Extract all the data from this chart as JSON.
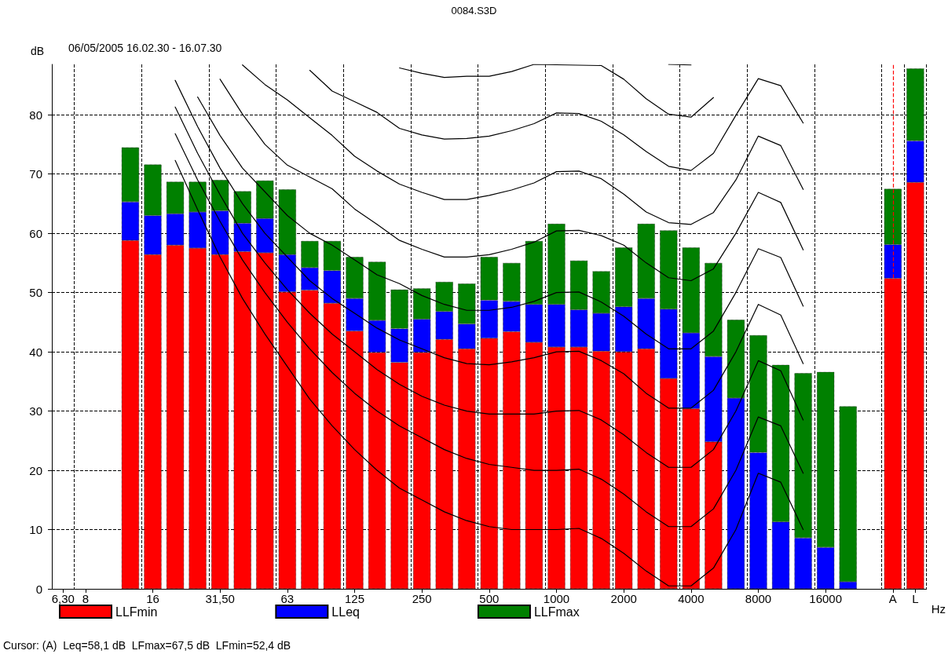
{
  "chart_data": {
    "type": "bar",
    "title": "0084.S3D",
    "subtitle": "06/05/2005 16.02.30 - 16.07.30",
    "ylabel": "dB",
    "xlabel": "Hz",
    "annotations": [
      "Cursor: (A)  Leq=58,1 dB  LFmax=67,5 dB  LFmin=52,4 dB"
    ],
    "categories": [
      "6,30",
      "8",
      null,
      null,
      "16",
      null,
      null,
      "31,50",
      null,
      null,
      "63",
      null,
      null,
      "125",
      null,
      null,
      "250",
      null,
      null,
      "500",
      null,
      null,
      "1000",
      null,
      null,
      "2000",
      null,
      null,
      "4000",
      null,
      null,
      "8000",
      null,
      null,
      "16000",
      null,
      null,
      "A",
      "L"
    ],
    "stacked": true,
    "ylim": [
      0,
      88.5
    ],
    "yticks": [
      0,
      10,
      20,
      30,
      40,
      50,
      60,
      70,
      80
    ],
    "grid": true,
    "legend": "bottom",
    "marker": "none",
    "ref_lines": [
      {
        "axis": "x",
        "value": "A",
        "color": "#ff0000",
        "line_style": "dashed"
      }
    ],
    "series": [
      {
        "name": "LLFmin",
        "color": "#ff0000",
        "values": [
          null,
          null,
          null,
          58.8,
          56.4,
          58.0,
          57.5,
          56.4,
          56.9,
          56.7,
          50.1,
          50.4,
          48.2,
          43.5,
          39.9,
          38.2,
          39.9,
          42.1,
          40.5,
          42.3,
          43.4,
          41.6,
          40.8,
          40.8,
          40.1,
          40.0,
          40.5,
          35.5,
          30.4,
          24.8,
          0,
          0,
          0,
          0,
          0,
          0,
          null,
          52.4,
          68.6
        ]
      },
      {
        "name": "LLeq",
        "color": "#0000ff",
        "values": [
          null,
          null,
          null,
          6.5,
          6.6,
          5.3,
          6.1,
          7.4,
          4.8,
          5.8,
          6.3,
          3.8,
          5.5,
          5.5,
          5.4,
          5.7,
          5.6,
          4.7,
          4.2,
          6.4,
          5.1,
          6.4,
          7.2,
          6.3,
          6.4,
          7.6,
          8.5,
          11.7,
          12.8,
          14.4,
          32.2,
          23.0,
          11.3,
          8.6,
          7.0,
          1.2,
          null,
          5.7,
          7.0
        ]
      },
      {
        "name": "LLFmax",
        "color": "#008000",
        "values": [
          null,
          null,
          null,
          9.2,
          8.6,
          5.4,
          5.1,
          5.2,
          5.4,
          6.4,
          11.0,
          4.5,
          5.0,
          7.0,
          9.9,
          6.6,
          5.2,
          5.0,
          6.8,
          7.3,
          6.5,
          10.7,
          13.6,
          8.3,
          7.1,
          10.0,
          12.6,
          13.3,
          14.4,
          15.8,
          13.2,
          19.8,
          26.5,
          27.8,
          29.6,
          29.6,
          null,
          9.4,
          12.2
        ]
      },
      {
        "type": "line",
        "color": "#000000",
        "values": [
          null,
          null,
          null,
          null,
          null,
          72.3,
          64,
          56,
          49,
          43,
          37.5,
          32,
          27.5,
          23.5,
          20,
          17,
          15,
          13,
          11.5,
          10.5,
          10,
          10,
          10,
          10.2,
          8.5,
          6,
          3,
          0.5,
          0.5,
          3.5,
          10,
          19.5,
          18,
          10,
          null,
          null,
          null,
          null,
          null
        ]
      },
      {
        "type": "line",
        "color": "#000000",
        "values": [
          null,
          null,
          null,
          null,
          null,
          76.8,
          69,
          62,
          55.5,
          50,
          45,
          40.5,
          36.5,
          33,
          30,
          27.5,
          25.5,
          23.5,
          22,
          21,
          20.5,
          20,
          20,
          20.2,
          18.5,
          16,
          13,
          10.5,
          10.5,
          13.5,
          20,
          29,
          27.5,
          19.5,
          null,
          null,
          null,
          null,
          null
        ]
      },
      {
        "type": "line",
        "color": "#000000",
        "values": [
          null,
          null,
          null,
          null,
          null,
          81.3,
          73.5,
          66.5,
          60,
          55,
          50.5,
          46.5,
          43,
          40,
          37,
          34.5,
          32.5,
          31,
          30,
          29.5,
          29.5,
          29.5,
          30,
          30.1,
          28.5,
          26,
          23,
          20.5,
          20.5,
          23.5,
          30,
          38.5,
          36.8,
          28.5,
          null,
          null,
          null,
          null,
          null
        ]
      },
      {
        "type": "line",
        "color": "#000000",
        "values": [
          null,
          null,
          null,
          null,
          null,
          85.8,
          78,
          71,
          65,
          60,
          56,
          52,
          49,
          46.5,
          44,
          42,
          40.5,
          39,
          38,
          37.8,
          38.3,
          39,
          40,
          40.1,
          38.5,
          36.3,
          33,
          30.5,
          30.5,
          33.5,
          40,
          48,
          46.2,
          38,
          null,
          null,
          null,
          null,
          null
        ]
      },
      {
        "type": "line",
        "color": "#000000",
        "values": [
          null,
          null,
          null,
          null,
          null,
          null,
          83.0,
          76.5,
          71,
          67,
          63,
          60,
          58,
          55.5,
          53,
          51.5,
          49.5,
          48,
          47,
          47,
          47.5,
          48.5,
          50,
          50.1,
          48.4,
          46,
          43,
          40.5,
          40.5,
          43.5,
          50,
          57.4,
          55.9,
          47.7,
          null,
          null,
          null,
          null,
          null
        ]
      },
      {
        "type": "line",
        "color": "#000000",
        "values": [
          null,
          null,
          null,
          null,
          null,
          null,
          null,
          86,
          80.1,
          75,
          71.5,
          69.5,
          67.5,
          64.1,
          61.5,
          58.8,
          57.3,
          56,
          56,
          56.4,
          57.3,
          58.5,
          60.4,
          60.5,
          59.6,
          58,
          55,
          52.5,
          52,
          54,
          60,
          66.9,
          65.2,
          57.2,
          null,
          null,
          null,
          null,
          null
        ]
      },
      {
        "type": "line",
        "color": "#000000",
        "values": [
          null,
          null,
          null,
          null,
          null,
          null,
          null,
          null,
          88.4,
          85.1,
          82.5,
          79.5,
          76.5,
          73,
          70.5,
          68.3,
          66.9,
          65.7,
          65.7,
          66.4,
          67.3,
          68.5,
          70.4,
          70.5,
          69.2,
          66.6,
          63.6,
          61.8,
          61.5,
          63.5,
          69,
          76.4,
          74.8,
          67.4,
          null,
          null,
          null,
          null,
          null
        ]
      },
      {
        "type": "line",
        "color": "#000000",
        "values": [
          null,
          null,
          null,
          null,
          null,
          null,
          null,
          null,
          null,
          null,
          null,
          87.5,
          84,
          82.2,
          80.4,
          77.7,
          76.6,
          75.9,
          76.0,
          76.4,
          77.3,
          78.5,
          80.3,
          80.2,
          78.9,
          76.6,
          73.8,
          71.3,
          70.6,
          73.5,
          79.9,
          86.1,
          84.9,
          78.6,
          null,
          null,
          null,
          null,
          null
        ]
      },
      {
        "type": "line",
        "color": "#000000",
        "values": [
          null,
          null,
          null,
          null,
          null,
          null,
          null,
          null,
          null,
          null,
          null,
          null,
          null,
          null,
          null,
          87.9,
          87,
          86.3,
          86.5,
          86.5,
          87.3,
          88.5,
          null,
          null,
          88.3,
          86.0,
          82.7,
          80.1,
          79.6,
          82.9,
          null,
          null,
          null,
          null,
          null,
          null,
          null,
          null,
          null
        ]
      },
      {
        "type": "line",
        "color": "#000000",
        "values": [
          null,
          null,
          null,
          null,
          null,
          null,
          null,
          null,
          null,
          null,
          null,
          null,
          null,
          null,
          null,
          null,
          null,
          null,
          null,
          null,
          null,
          null,
          null,
          null,
          null,
          null,
          null,
          88.5,
          88.4,
          null,
          null,
          null,
          null,
          null,
          null,
          null,
          null,
          null,
          null
        ]
      }
    ]
  }
}
